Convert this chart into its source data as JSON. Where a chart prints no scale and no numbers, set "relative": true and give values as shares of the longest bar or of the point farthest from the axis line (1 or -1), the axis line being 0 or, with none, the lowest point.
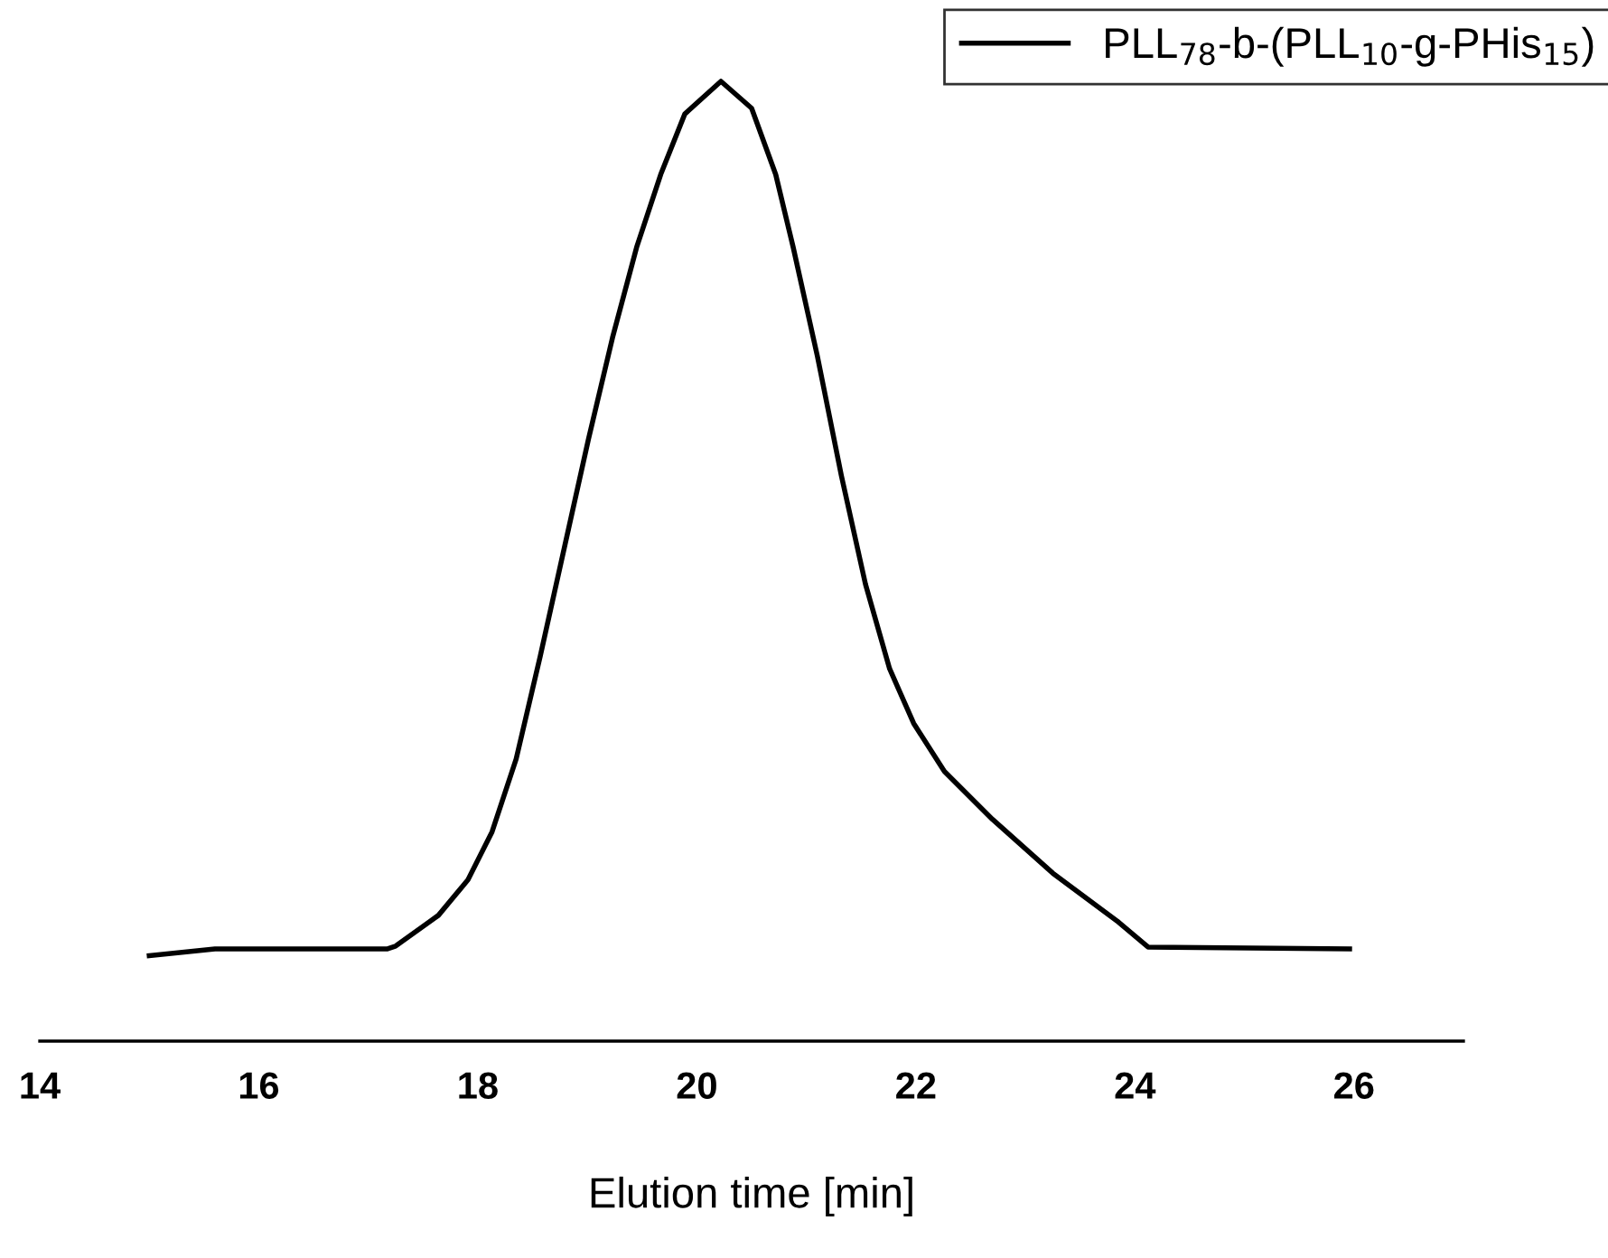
{
  "chart_data": {
    "type": "line",
    "relative": true,
    "xlabel": "Elution time [min]",
    "xlim": [
      14,
      27
    ],
    "xticks": [
      14,
      16,
      18,
      20,
      22,
      24,
      26
    ],
    "grid": false,
    "legend": "top right",
    "marker": "none",
    "line_style": "solid",
    "series": [
      {
        "name": "PLL$_{78}$-b-(PLL$_{10}$-g-PHis$_{15}$)",
        "color": "#000000",
        "x": [
          15.0,
          15.6,
          17.17,
          17.25,
          17.64,
          17.91,
          18.13,
          18.35,
          18.57,
          18.79,
          19.01,
          19.23,
          19.45,
          19.67,
          19.89,
          20.22,
          20.5,
          20.72,
          20.88,
          21.1,
          21.32,
          21.54,
          21.76,
          21.98,
          22.26,
          22.7,
          23.25,
          23.85,
          24.12,
          25.96
        ],
        "values": [
          0.089,
          0.096,
          0.096,
          0.099,
          0.131,
          0.168,
          0.218,
          0.294,
          0.401,
          0.514,
          0.627,
          0.733,
          0.827,
          0.903,
          0.966,
          1.0,
          0.972,
          0.903,
          0.827,
          0.714,
          0.589,
          0.476,
          0.388,
          0.331,
          0.281,
          0.231,
          0.175,
          0.124,
          0.098,
          0.096
        ]
      }
    ]
  }
}
